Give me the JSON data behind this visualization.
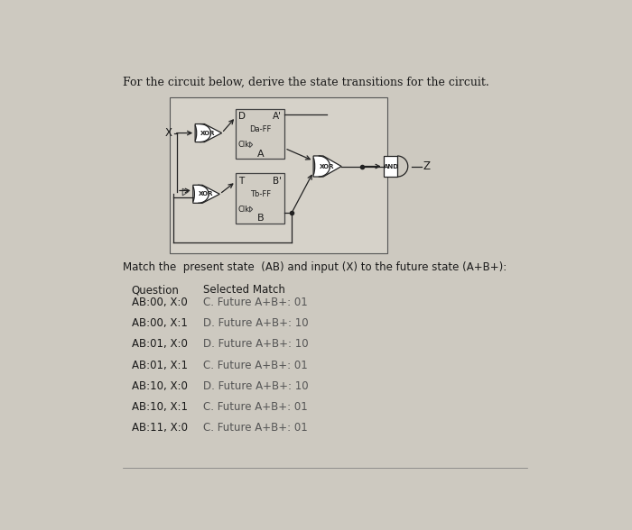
{
  "title": "For the circuit below, derive the state transitions for the circuit.",
  "bg_color": "#cdc9c0",
  "subtitle": "Match the  present state  (AB) and input (X) to the future state (A+B+):",
  "header_question": "Question",
  "header_match": "Selected Match",
  "rows": [
    {
      "question": "AB:00, X:0",
      "match": "C. Future A+B+: 01"
    },
    {
      "question": "AB:00, X:1",
      "match": "D. Future A+B+: 10"
    },
    {
      "question": "AB:01, X:0",
      "match": "D. Future A+B+: 10"
    },
    {
      "question": "AB:01, X:1",
      "match": "C. Future A+B+: 01"
    },
    {
      "question": "AB:10, X:0",
      "match": "D. Future A+B+: 10"
    },
    {
      "question": "AB:10, X:1",
      "match": "C. Future A+B+: 01"
    },
    {
      "question": "AB:11, X:0",
      "match": "C. Future A+B+: 01"
    }
  ],
  "text_color": "#1a1a1a",
  "match_color": "#555555",
  "circuit_bg": "#d6d2c9",
  "ff_bg": "#d0ccc3",
  "wire_color": "#222222",
  "gate_edge": "#222222"
}
